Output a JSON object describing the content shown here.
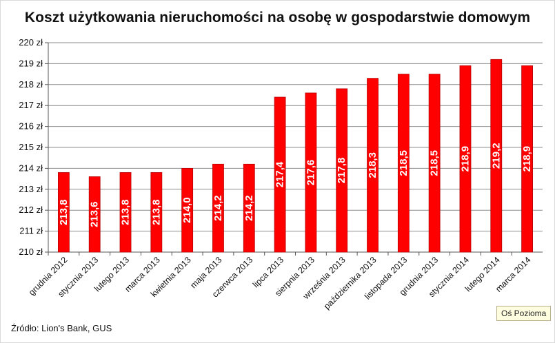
{
  "chart_data": {
    "type": "bar",
    "title": "Koszt użytkowania nieruchomości na osobę w gospodarstwie domowym",
    "categories": [
      "grudnia 2012",
      "stycznia 2013",
      "lutego 2013",
      "marca 2013",
      "kwietnia 2013",
      "maja 2013",
      "czerwca 2013",
      "lipca 2013",
      "sierpnia 2013",
      "września 2013",
      "października 2013",
      "listopada 2013",
      "grudnia 2013",
      "stycznia 2014",
      "lutego 2014",
      "marca 2014"
    ],
    "values": [
      213.8,
      213.6,
      213.8,
      213.8,
      214.0,
      214.2,
      214.2,
      217.4,
      217.6,
      217.8,
      218.3,
      218.5,
      218.5,
      218.9,
      219.2,
      218.9
    ],
    "data_labels": [
      "213,8",
      "213,6",
      "213,8",
      "213,8",
      "214,0",
      "214,2",
      "214,2",
      "217,4",
      "217,6",
      "217,8",
      "218,3",
      "218,5",
      "218,5",
      "218,9",
      "219,2",
      "218,9"
    ],
    "yticks": [
      "210 zł",
      "211 zł",
      "212 zł",
      "213 zł",
      "214 zł",
      "215 zł",
      "216 zł",
      "217 zł",
      "218 zł",
      "219 zł",
      "220 zł"
    ],
    "ylim": [
      210,
      220
    ],
    "grid": true,
    "legend": "none",
    "bar_color": "#ff0000",
    "bar_edge_color": "#b80000",
    "xlabel": "",
    "ylabel": ""
  },
  "source_note": "Źródło: Lion's Bank, GUS",
  "tooltip": "Oś  Pozioma"
}
